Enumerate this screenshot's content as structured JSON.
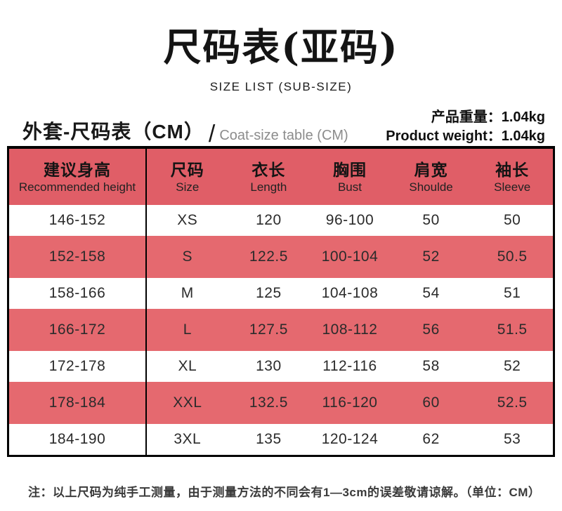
{
  "title": "尺码表(亚码)",
  "subtitle": "SIZE LIST (SUB-SIZE)",
  "meta": {
    "section_heading_cn": "外套-尺码表（CM）",
    "section_slash": "/",
    "section_heading_en": "Coat-size table (CM)",
    "product_weight_cn": "产品重量：1.04kg",
    "product_weight_en": "Product weight：1.04kg"
  },
  "colors": {
    "header_red": "#e05e67",
    "row_red": "#e5696f",
    "border_black": "#000000"
  },
  "chart_data": {
    "type": "table",
    "title": "尺码表(亚码)",
    "subtitle": "SIZE LIST (SUB-SIZE)",
    "unit": "CM",
    "columns": [
      {
        "cn": "建议身高",
        "en": "Recommended height"
      },
      {
        "cn": "尺码",
        "en": "Size"
      },
      {
        "cn": "衣长",
        "en": "Length"
      },
      {
        "cn": "胸围",
        "en": "Bust"
      },
      {
        "cn": "肩宽",
        "en": "Shoulde"
      },
      {
        "cn": "袖长",
        "en": "Sleeve"
      }
    ],
    "rows": [
      [
        "146-152",
        "XS",
        "120",
        "96-100",
        "50",
        "50"
      ],
      [
        "152-158",
        "S",
        "122.5",
        "100-104",
        "52",
        "50.5"
      ],
      [
        "158-166",
        "M",
        "125",
        "104-108",
        "54",
        "51"
      ],
      [
        "166-172",
        "L",
        "127.5",
        "108-112",
        "56",
        "51.5"
      ],
      [
        "172-178",
        "XL",
        "130",
        "112-116",
        "58",
        "52"
      ],
      [
        "178-184",
        "XXL",
        "132.5",
        "116-120",
        "60",
        "52.5"
      ],
      [
        "184-190",
        "3XL",
        "135",
        "120-124",
        "62",
        "53"
      ]
    ]
  },
  "note": "注：以上尺码为纯手工测量，由于测量方法的不同会有1—3cm的误差敬请谅解。（单位：CM）"
}
